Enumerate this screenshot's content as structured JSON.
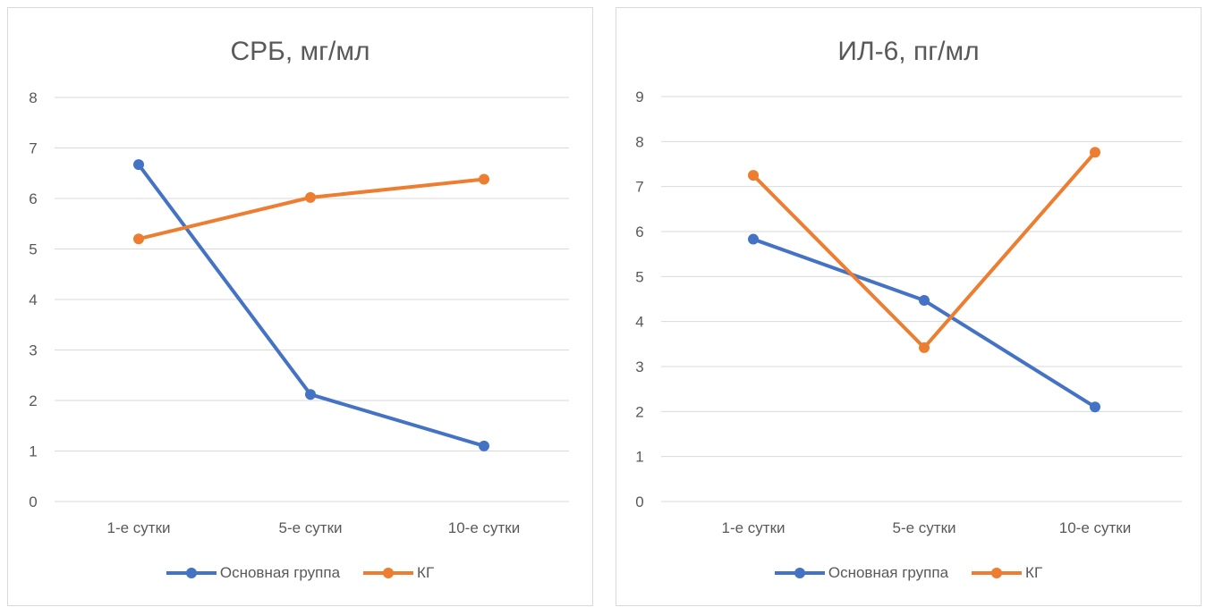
{
  "chart_data": [
    {
      "type": "line",
      "title": "СРБ, мг/мл",
      "categories": [
        "1-е сутки",
        "5-е сутки",
        "10-е сутки"
      ],
      "yticks": [
        "0",
        "1",
        "2",
        "3",
        "4",
        "5",
        "6",
        "7",
        "8"
      ],
      "ylim": [
        0,
        8
      ],
      "grid": true,
      "legend_position": "bottom",
      "series": [
        {
          "name": "Основная группа",
          "values": [
            6.67,
            2.12,
            1.1
          ],
          "color": "#4472C4"
        },
        {
          "name": "КГ",
          "values": [
            5.2,
            6.02,
            6.38
          ],
          "color": "#ED7D31"
        }
      ]
    },
    {
      "type": "line",
      "title": "ИЛ-6, пг/мл",
      "categories": [
        "1-е сутки",
        "5-е сутки",
        "10-е сутки"
      ],
      "yticks": [
        "0",
        "1",
        "2",
        "3",
        "4",
        "5",
        "6",
        "7",
        "8",
        "9"
      ],
      "ylim": [
        0,
        9
      ],
      "grid": true,
      "legend_position": "bottom",
      "series": [
        {
          "name": "Основная группа",
          "values": [
            5.83,
            4.47,
            2.1
          ],
          "color": "#4472C4"
        },
        {
          "name": "КГ",
          "values": [
            7.25,
            3.42,
            7.76
          ],
          "color": "#ED7D31"
        }
      ]
    }
  ]
}
